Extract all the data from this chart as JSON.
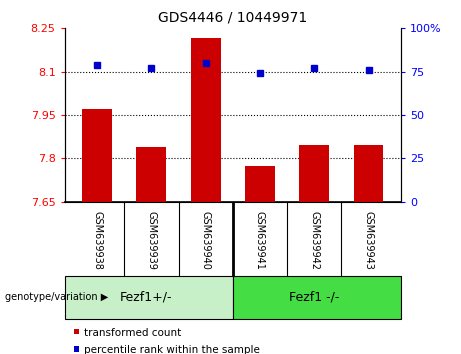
{
  "title": "GDS4446 / 10449971",
  "samples": [
    "GSM639938",
    "GSM639939",
    "GSM639940",
    "GSM639941",
    "GSM639942",
    "GSM639943"
  ],
  "bar_values": [
    7.97,
    7.84,
    8.215,
    7.775,
    7.845,
    7.845
  ],
  "percentile_values": [
    79,
    77,
    80,
    74,
    77,
    76
  ],
  "ymin": 7.65,
  "ymax": 8.25,
  "yticks": [
    7.65,
    7.8,
    7.95,
    8.1,
    8.25
  ],
  "ytick_labels": [
    "7.65",
    "7.8",
    "7.95",
    "8.1",
    "8.25"
  ],
  "yticks_right": [
    0,
    25,
    50,
    75,
    100
  ],
  "ytick_labels_right": [
    "0",
    "25",
    "50",
    "75",
    "100%"
  ],
  "hlines": [
    8.1,
    7.95,
    7.8
  ],
  "bar_color": "#cc0000",
  "dot_color": "#0000cc",
  "group1_label": "Fezf1+/-",
  "group2_label": "Fezf1 -/-",
  "group1_color": "#c8f0c8",
  "group2_color": "#44dd44",
  "sample_label_bg": "#c8c8c8",
  "legend_bar_label": "transformed count",
  "legend_dot_label": "percentile rank within the sample",
  "genotype_label": "genotype/variation"
}
